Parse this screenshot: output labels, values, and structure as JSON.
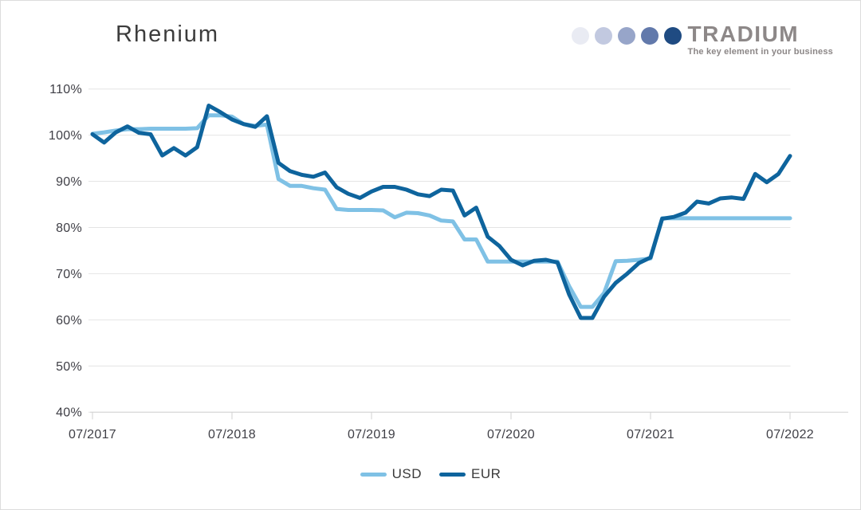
{
  "page": {
    "title": "Rhenium"
  },
  "logo": {
    "brand": "TRADIUM",
    "tagline": "The key element in your business",
    "text_color": "#8D8888",
    "dot_colors": [
      "#E9EBF3",
      "#C2C9E0",
      "#97A5C9",
      "#6279AB",
      "#1F4B82"
    ]
  },
  "chart_data": {
    "type": "line",
    "title": "Rhenium",
    "x_start": "2017-07",
    "x_end": "2022-07",
    "interval": "monthly",
    "x_tick_labels": [
      "07/2017",
      "07/2018",
      "07/2019",
      "07/2020",
      "07/2021",
      "07/2022"
    ],
    "y_tick_labels": [
      "110%",
      "100%",
      "90%",
      "80%",
      "70%",
      "60%",
      "50%",
      "40%"
    ],
    "y_axis_range": [
      40,
      110
    ],
    "y_unit": "%",
    "grid": "horizontal",
    "grid_color": "#E4E4E4",
    "axis_color": "#D2D2D2",
    "legend_position": "bottom",
    "series": [
      {
        "name": "USD",
        "color": "#7FC1E5",
        "values": [
          100.3,
          100.6,
          101.0,
          101.3,
          101.3,
          101.4,
          101.4,
          101.4,
          101.4,
          101.5,
          104.3,
          104.3,
          104.0,
          102.4,
          102.0,
          102.3,
          90.5,
          89.0,
          89.0,
          88.5,
          88.2,
          84.0,
          83.8,
          83.8,
          83.8,
          83.7,
          82.2,
          83.2,
          83.1,
          82.6,
          81.5,
          81.3,
          77.4,
          77.4,
          72.6,
          72.6,
          72.6,
          72.6,
          72.6,
          72.6,
          72.6,
          67.3,
          62.8,
          62.8,
          65.8,
          72.7,
          72.8,
          73.0,
          73.3,
          82.0,
          82.0,
          82.0,
          82.0,
          82.0,
          82.0,
          82.0,
          82.0,
          82.0,
          82.0,
          82.0,
          82.0
        ]
      },
      {
        "name": "EUR",
        "color": "#0E649D",
        "values": [
          100.2,
          98.4,
          100.6,
          101.9,
          100.5,
          100.2,
          95.6,
          97.2,
          95.6,
          97.4,
          106.4,
          105.0,
          103.4,
          102.4,
          101.8,
          104.1,
          94.0,
          92.2,
          91.4,
          91.0,
          91.9,
          88.7,
          87.3,
          86.4,
          87.8,
          88.8,
          88.8,
          88.2,
          87.2,
          86.8,
          88.2,
          88.0,
          82.6,
          84.3,
          78.0,
          76.0,
          73.0,
          71.8,
          72.8,
          73.0,
          72.4,
          65.5,
          60.4,
          60.4,
          65.0,
          68.0,
          70.0,
          72.3,
          73.5,
          81.9,
          82.3,
          83.2,
          85.6,
          85.2,
          86.3,
          86.5,
          86.2,
          91.6,
          89.8,
          91.6,
          95.5
        ]
      }
    ]
  }
}
